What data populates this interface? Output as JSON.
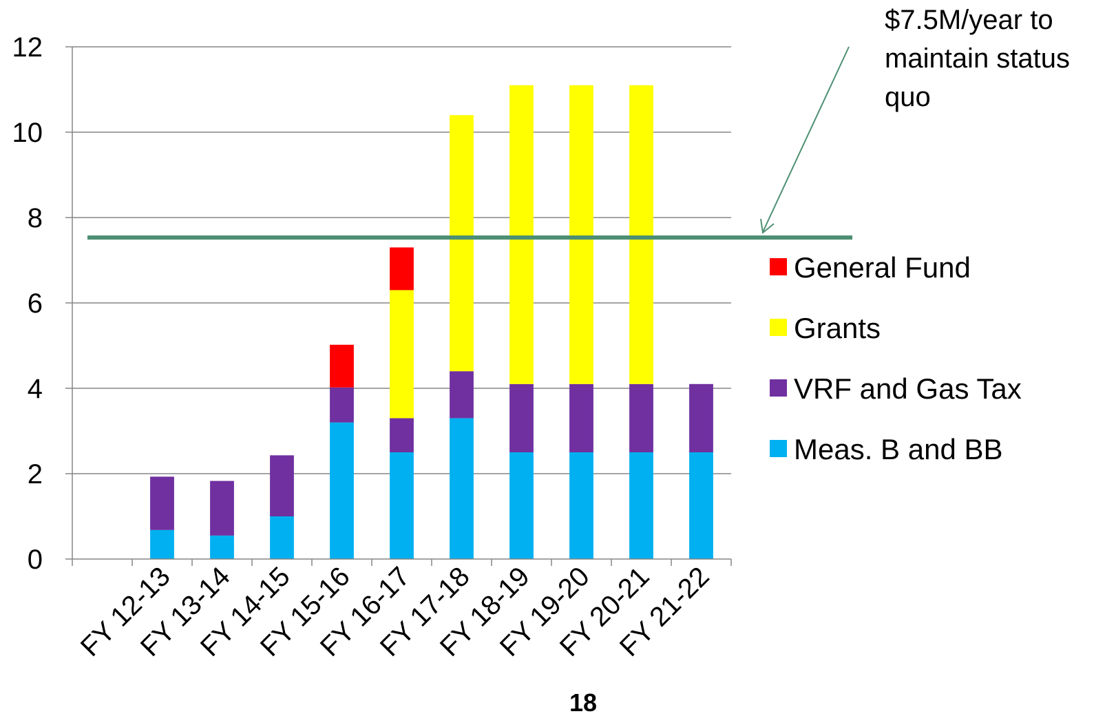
{
  "chart_data": {
    "type": "bar",
    "stacked": true,
    "categories": [
      "",
      "FY 12-13",
      "FY 13-14",
      "FY 14-15",
      "FY 15-16",
      "FY 16-17",
      "FY 17-18",
      "FY 18-19",
      "FY 19-20",
      "FY 20-21",
      "FY 21-22"
    ],
    "series": [
      {
        "name": "Meas. B and BB",
        "color": "#00b0f0",
        "values": [
          0,
          0.68,
          0.55,
          1.0,
          3.2,
          2.5,
          3.3,
          2.5,
          2.5,
          2.5,
          2.5
        ]
      },
      {
        "name": "VRF and Gas Tax",
        "color": "#7030a0",
        "values": [
          0,
          1.25,
          1.28,
          1.43,
          0.82,
          0.8,
          1.1,
          1.6,
          1.6,
          1.6,
          1.6
        ]
      },
      {
        "name": "Grants",
        "color": "#ffff00",
        "values": [
          0,
          0,
          0,
          0,
          0,
          3.0,
          6.0,
          7.0,
          7.0,
          7.0,
          0
        ]
      },
      {
        "name": "General Fund",
        "color": "#ff0000",
        "values": [
          0,
          0,
          0,
          0,
          1.0,
          1.0,
          0,
          0,
          0,
          0,
          0
        ]
      }
    ],
    "ylim": [
      0,
      12
    ],
    "yticks": [
      "0",
      "2",
      "4",
      "6",
      "8",
      "10",
      "12"
    ],
    "grid": true,
    "legend_position": "right",
    "reference_line": {
      "value": 7.5,
      "color": "#4e8f73"
    },
    "annotation_lines": [
      "$7.5M/year to",
      "maintain status",
      "quo"
    ],
    "title": "",
    "xlabel": "",
    "ylabel": ""
  },
  "page_number": "18"
}
